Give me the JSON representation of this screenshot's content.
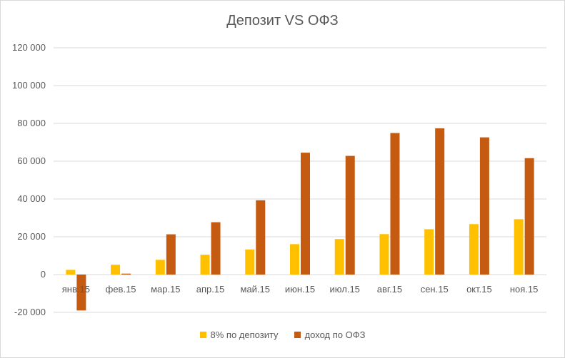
{
  "chart_data": {
    "type": "bar",
    "title": "Депозит VS ОФЗ",
    "categories": [
      "янв.15",
      "фев.15",
      "мар.15",
      "апр.15",
      "май.15",
      "июн.15",
      "июл.15",
      "авг.15",
      "сен.15",
      "окт.15",
      "ноя.15"
    ],
    "series": [
      {
        "name": "8% по депозиту",
        "color": "#FFC000",
        "values": [
          2500,
          5200,
          7800,
          10500,
          13300,
          16100,
          18800,
          21400,
          24000,
          26700,
          29300
        ]
      },
      {
        "name": "доход по ОФЗ",
        "color": "#C55A11",
        "values": [
          -19000,
          500,
          21300,
          27700,
          39300,
          64500,
          62800,
          74900,
          77400,
          72600,
          61600
        ]
      }
    ],
    "ylim": [
      -20000,
      120000
    ],
    "yticks": [
      "-20 000",
      "0",
      "20 000",
      "40 000",
      "60 000",
      "80 000",
      "100 000",
      "120 000"
    ],
    "ytick_values": [
      -20000,
      0,
      20000,
      40000,
      60000,
      80000,
      100000,
      120000
    ],
    "grid": true,
    "legend_position": "bottom"
  }
}
